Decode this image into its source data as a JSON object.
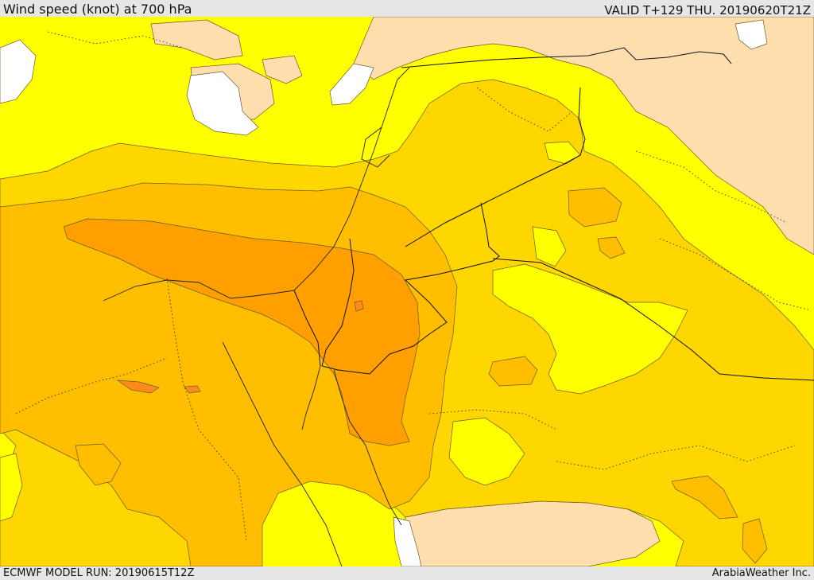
{
  "header": {
    "title": "Wind speed (knot) at 700 hPa",
    "valid": "VALID T+129 THU. 20190620T21Z"
  },
  "footer": {
    "model_run": "ECMWF MODEL RUN: 20190615T12Z",
    "brand": "ArabiaWeather Inc."
  },
  "map": {
    "colors": {
      "calm": "#ffffff",
      "light": "#ffdead",
      "moderate": "#ffff00",
      "fresh": "#ffd700",
      "strong": "#ffbf00",
      "very_strong": "#ff9f00",
      "gale": "#ff8c1a",
      "contour": "#6b5a2a",
      "border": "#111111"
    }
  }
}
